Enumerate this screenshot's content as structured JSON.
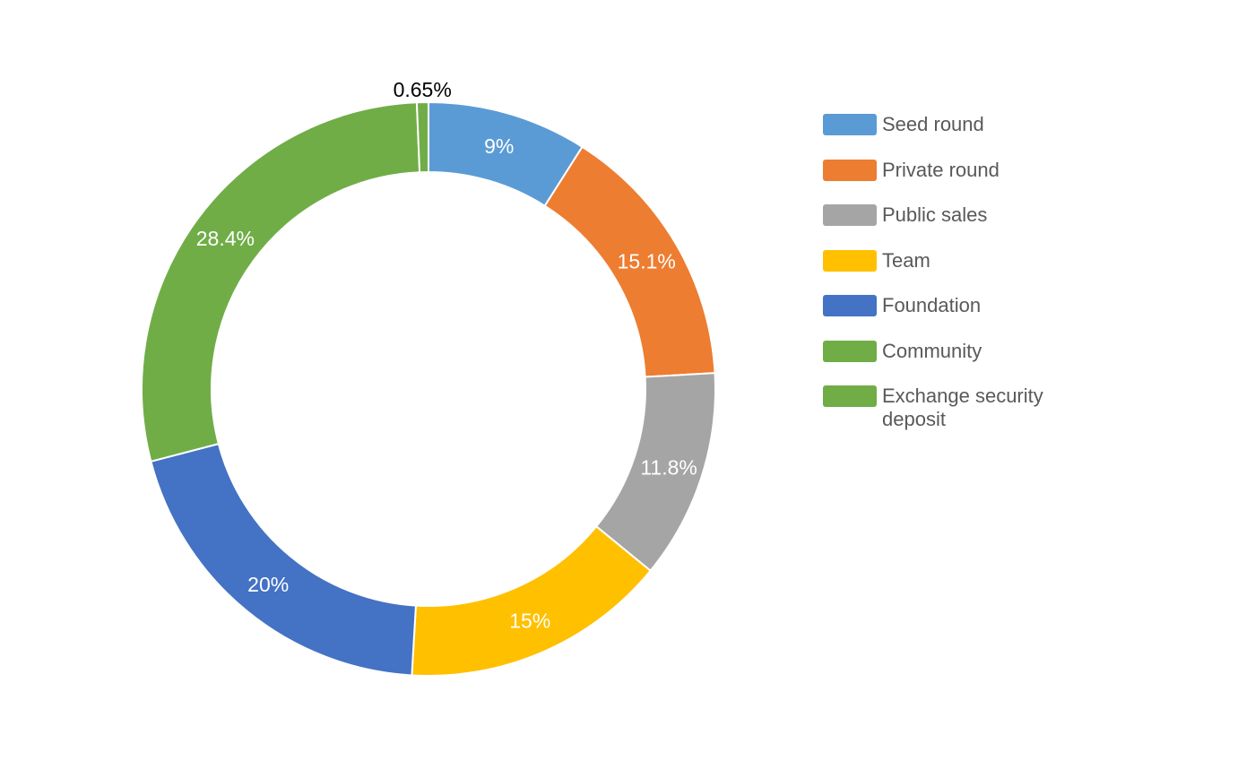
{
  "chart_data": {
    "type": "pie",
    "variant": "donut",
    "title": "",
    "categories": [
      "Seed round",
      "Private round",
      "Public sales",
      "Team",
      "Foundation",
      "Community",
      "Exchange security deposit"
    ],
    "values": [
      9,
      15.1,
      11.8,
      15,
      20,
      28.4,
      0.65
    ],
    "data_labels": [
      "9%",
      "15.1%",
      "11.8%",
      "15%",
      "20%",
      "28.4%",
      "0.65%"
    ],
    "colors": [
      "#5B9BD5",
      "#ED7D31",
      "#A5A5A5",
      "#FFC000",
      "#4472C4",
      "#70AD47",
      "#70AD47"
    ],
    "label_colors": [
      "#ffffff",
      "#ffffff",
      "#ffffff",
      "#ffffff",
      "#ffffff",
      "#ffffff",
      "#000000"
    ],
    "legend_position": "right"
  }
}
